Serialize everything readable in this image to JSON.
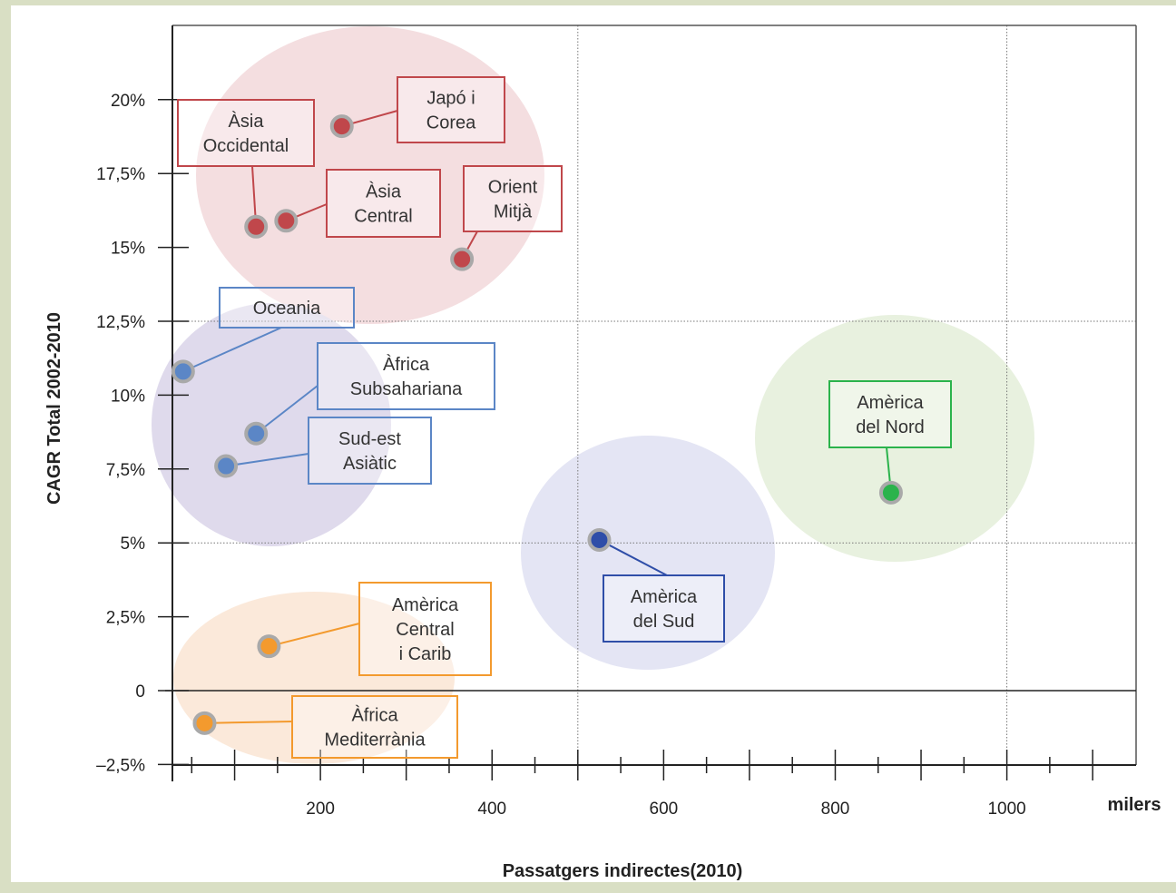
{
  "chart_data": {
    "type": "scatter",
    "title": "",
    "xlabel": "Passatgers indirectes(2010)",
    "x_unit": "milers",
    "ylabel": "CAGR Total 2002-2010",
    "xlim": [
      0,
      1120
    ],
    "ylim": [
      -2.5,
      22
    ],
    "x_ticks": [
      "200",
      "400",
      "600",
      "800",
      "1000"
    ],
    "y_ticks": [
      "20%",
      "17,5%",
      "15%",
      "12,5%",
      "10%",
      "7,5%",
      "5%",
      "2,5%",
      "0",
      "–2,5%"
    ],
    "grid": "dotted at x=500, x=1000, y=12.5%, y=5%",
    "colors": {
      "red": "#c0474b",
      "blue": "#5b86c6",
      "darkblue": "#2f4ea8",
      "green": "#2bb34c",
      "orange": "#f39a2e"
    },
    "points": [
      {
        "label": "Japó i Corea",
        "lines": [
          "Japó i",
          "Corea"
        ],
        "x": 225,
        "y": 19.1,
        "color": "red"
      },
      {
        "label": "Àsia Occidental",
        "lines": [
          "Àsia",
          "Occidental"
        ],
        "x": 125,
        "y": 15.7,
        "color": "red"
      },
      {
        "label": "Àsia Central",
        "lines": [
          "Àsia",
          "Central"
        ],
        "x": 160,
        "y": 15.9,
        "color": "red"
      },
      {
        "label": "Orient Mitjà",
        "lines": [
          "Orient",
          "Mitjà"
        ],
        "x": 365,
        "y": 14.6,
        "color": "red"
      },
      {
        "label": "Oceania",
        "lines": [
          "Oceania"
        ],
        "x": 40,
        "y": 10.8,
        "color": "blue"
      },
      {
        "label": "Àfrica Subsahariana",
        "lines": [
          "Àfrica",
          "Subsahariana"
        ],
        "x": 125,
        "y": 8.7,
        "color": "blue"
      },
      {
        "label": "Sud-est Asiàtic",
        "lines": [
          "Sud-est",
          "Asiàtic"
        ],
        "x": 90,
        "y": 7.6,
        "color": "blue"
      },
      {
        "label": "Amèrica del Sud",
        "lines": [
          "Amèrica",
          "del Sud"
        ],
        "x": 525,
        "y": 5.1,
        "color": "darkblue"
      },
      {
        "label": "Amèrica del Nord",
        "lines": [
          "Amèrica",
          "del Nord"
        ],
        "x": 865,
        "y": 6.7,
        "color": "green"
      },
      {
        "label": "Amèrica Central i Carib",
        "lines": [
          "Amèrica",
          "Central",
          "i Carib"
        ],
        "x": 140,
        "y": 1.5,
        "color": "orange"
      },
      {
        "label": "Àfrica Mediterrània",
        "lines": [
          "Àfrica",
          "Mediterrània"
        ],
        "x": 65,
        "y": -1.1,
        "color": "orange"
      }
    ]
  }
}
